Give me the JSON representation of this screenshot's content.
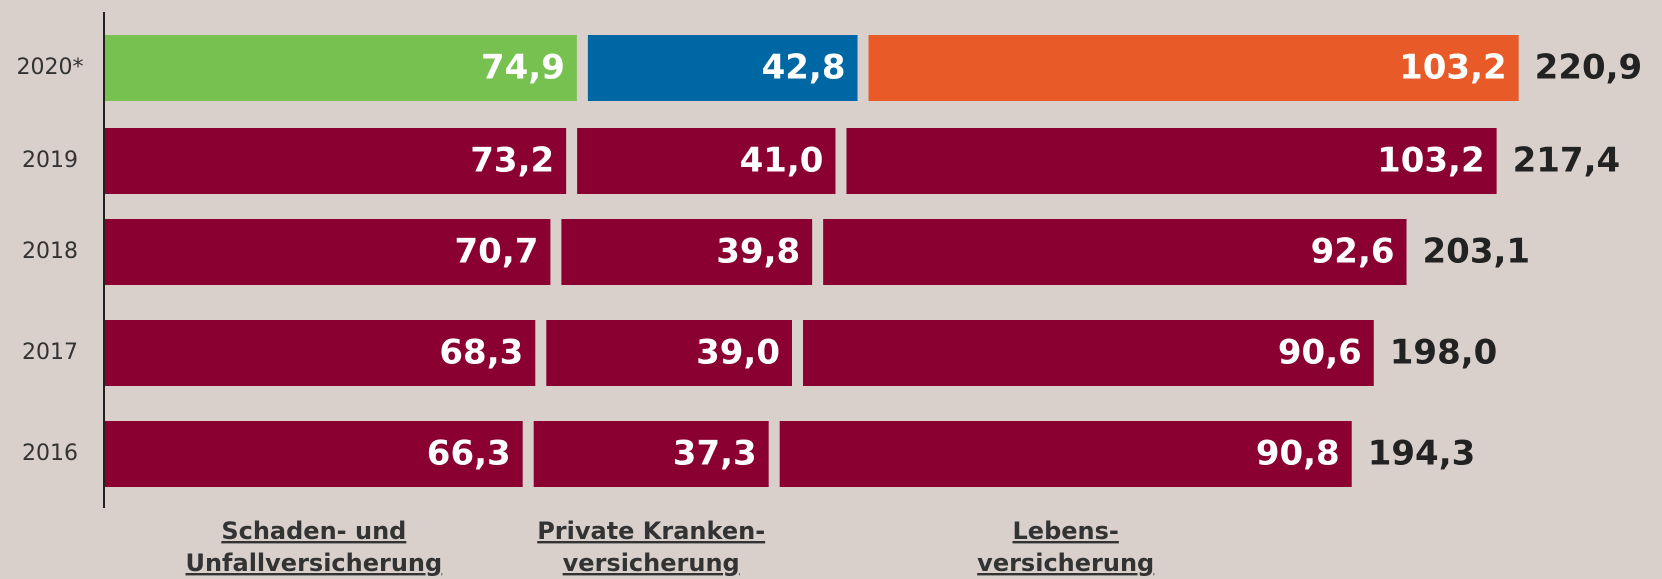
{
  "chart_data": {
    "type": "stacked-bar-horizontal",
    "categories": [
      "2020*",
      "2019",
      "2018",
      "2017",
      "2016"
    ],
    "series": [
      {
        "name": "Schaden- und\nUnfallversicherung",
        "color": "#8a0030",
        "colors": [
          "#76c150",
          "#8a0030",
          "#8a0030",
          "#8a0030",
          "#8a0030"
        ],
        "values": [
          74.9,
          73.2,
          70.7,
          68.3,
          66.3
        ],
        "value_labels": [
          "74,9",
          "73,2",
          "70,7",
          "68,3",
          "66,3"
        ]
      },
      {
        "name": "Private Kranken-\nversicherung",
        "color": "#8a0030",
        "colors": [
          "#0067a5",
          "#8a0030",
          "#8a0030",
          "#8a0030",
          "#8a0030"
        ],
        "values": [
          42.8,
          41.0,
          39.8,
          39.0,
          37.3
        ],
        "value_labels": [
          "42,8",
          "41,0",
          "39,8",
          "39,0",
          "37,3"
        ]
      },
      {
        "name": "Lebens-\nversicherung",
        "color": "#8a0030",
        "colors": [
          "#e85a27",
          "#8a0030",
          "#8a0030",
          "#8a0030",
          "#8a0030"
        ],
        "values": [
          103.2,
          103.2,
          92.6,
          90.6,
          90.8
        ],
        "value_labels": [
          "103,2",
          "103,2",
          "92,6",
          "90,6",
          "90,8"
        ]
      }
    ],
    "totals": {
      "values": [
        220.9,
        217.4,
        203.1,
        198.0,
        194.3
      ],
      "value_labels": [
        "220,9",
        "217,4",
        "203,1",
        "198,0",
        "194,3"
      ]
    }
  }
}
